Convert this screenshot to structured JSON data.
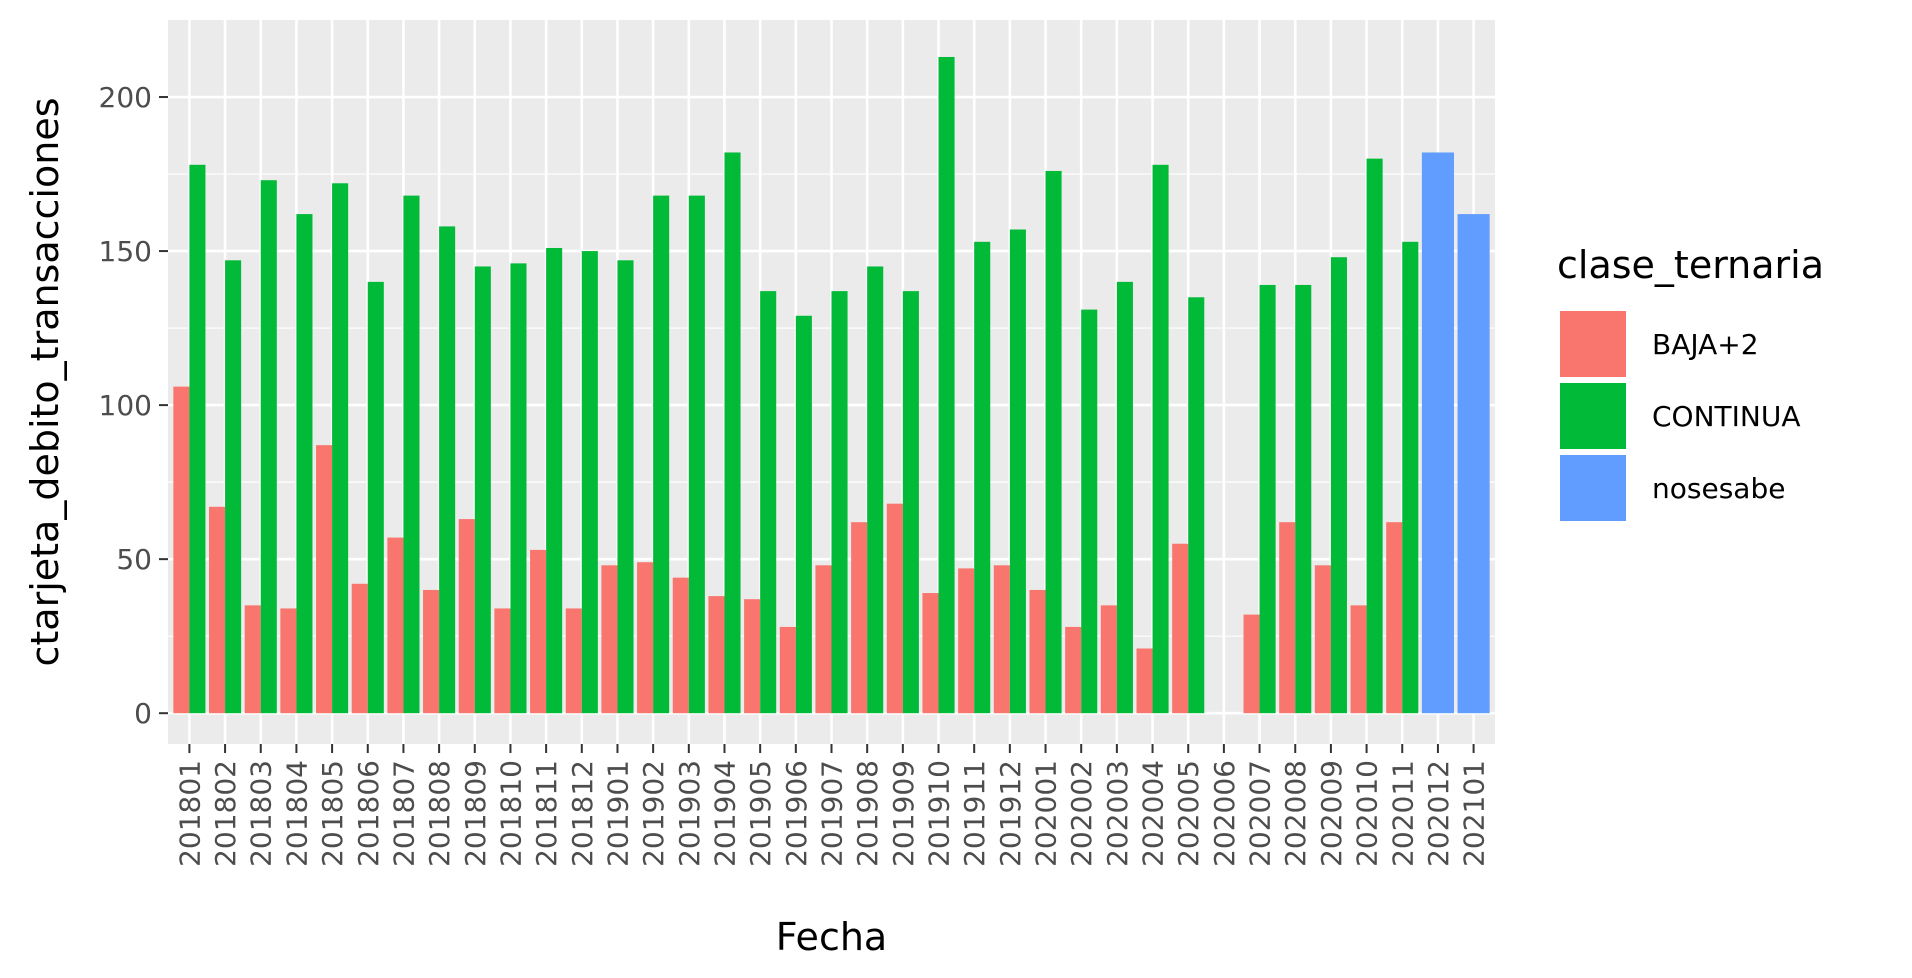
{
  "chart_data": {
    "type": "bar",
    "xlabel": "Fecha",
    "ylabel": "ctarjeta_debito_transacciones",
    "ylim": [
      -10,
      225
    ],
    "yticks": [
      0,
      50,
      100,
      150,
      200
    ],
    "grid": true,
    "legend_position": "right",
    "legend_title": "clase_ternaria",
    "categories": [
      "201801",
      "201802",
      "201803",
      "201804",
      "201805",
      "201806",
      "201807",
      "201808",
      "201809",
      "201810",
      "201811",
      "201812",
      "201901",
      "201902",
      "201903",
      "201904",
      "201905",
      "201906",
      "201907",
      "201908",
      "201909",
      "201910",
      "201911",
      "201912",
      "202001",
      "202002",
      "202003",
      "202004",
      "202005",
      "202006",
      "202007",
      "202008",
      "202009",
      "202010",
      "202011",
      "202012",
      "202101"
    ],
    "series": [
      {
        "name": "BAJA+2",
        "color": "#F8766D",
        "values": [
          106,
          67,
          35,
          34,
          87,
          42,
          57,
          40,
          63,
          34,
          53,
          34,
          48,
          49,
          44,
          38,
          37,
          28,
          48,
          62,
          68,
          39,
          47,
          48,
          40,
          28,
          35,
          21,
          55,
          null,
          32,
          62,
          48,
          35,
          62,
          null,
          null
        ]
      },
      {
        "name": "CONTINUA",
        "color": "#00BA38",
        "values": [
          178,
          147,
          173,
          162,
          172,
          140,
          168,
          158,
          145,
          146,
          151,
          150,
          147,
          168,
          168,
          182,
          137,
          129,
          137,
          145,
          137,
          213,
          153,
          157,
          176,
          131,
          140,
          178,
          135,
          null,
          139,
          139,
          148,
          180,
          153,
          null,
          null
        ]
      },
      {
        "name": "nosesabe",
        "color": "#619CFF",
        "values": [
          null,
          null,
          null,
          null,
          null,
          null,
          null,
          null,
          null,
          null,
          null,
          null,
          null,
          null,
          null,
          null,
          null,
          null,
          null,
          null,
          null,
          null,
          null,
          null,
          null,
          null,
          null,
          null,
          null,
          null,
          null,
          null,
          null,
          null,
          null,
          182,
          162
        ]
      }
    ]
  },
  "colors": {
    "panel_background": "#EBEBEB",
    "grid_major": "#FFFFFF"
  }
}
